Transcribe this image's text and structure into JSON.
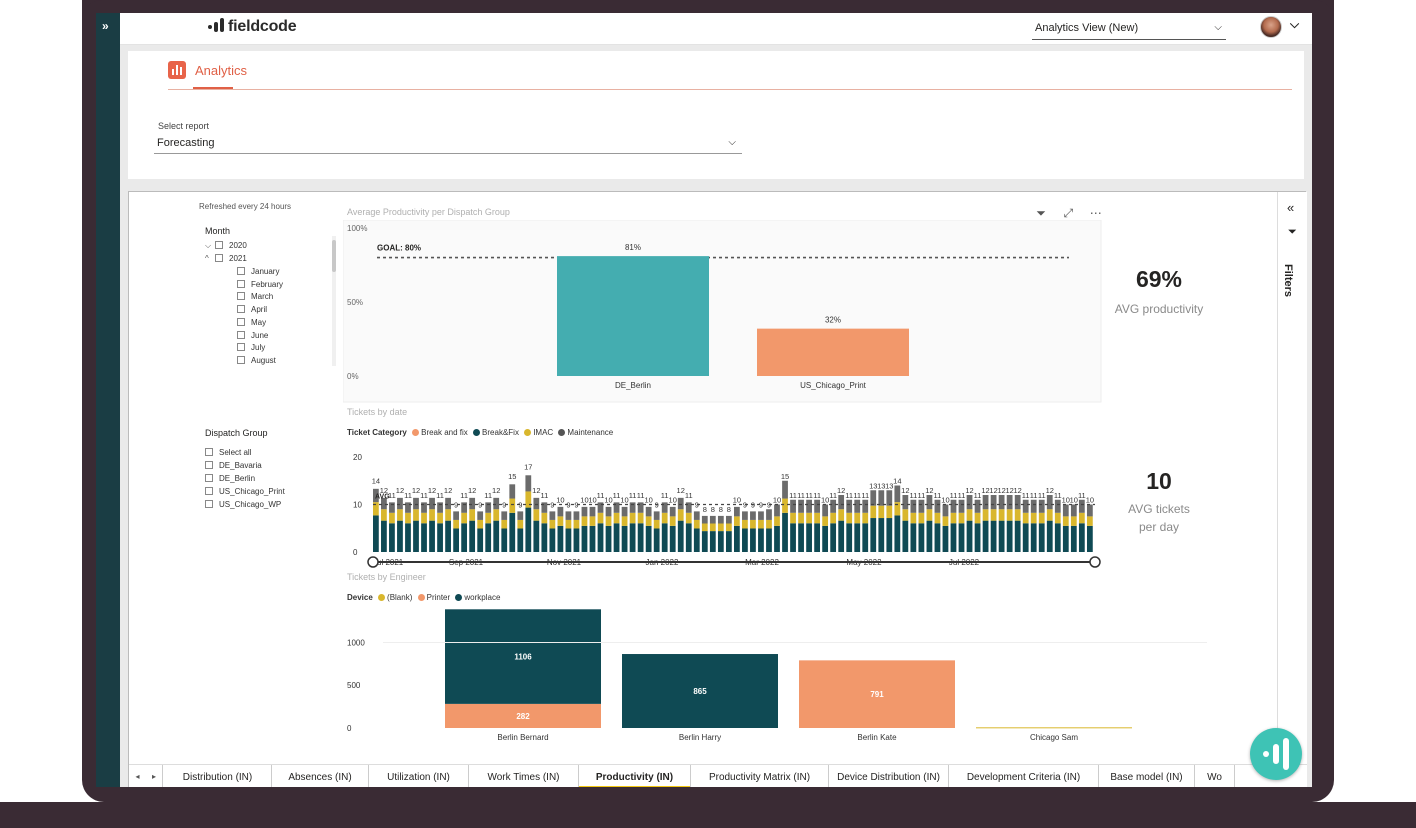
{
  "app": {
    "logo_text": "fieldcode",
    "view_selector": "Analytics View (New)",
    "collapse_icon": "double-chevron-right-icon"
  },
  "analytics_tab": {
    "label": "Analytics",
    "icon": "bar-chart-icon"
  },
  "report_selector": {
    "label": "Select report",
    "value": "Forecasting"
  },
  "report": {
    "refreshed_text": "Refreshed every 24 hours",
    "month_slicer": {
      "title": "Month",
      "years": [
        "2020",
        "2021"
      ],
      "months": [
        "January",
        "February",
        "March",
        "April",
        "May",
        "June",
        "July",
        "August"
      ]
    },
    "dispatch_slicer": {
      "title": "Dispatch Group",
      "items": [
        "Select all",
        "DE_Bavaria",
        "DE_Berlin",
        "US_Chicago_Print",
        "US_Chicago_WP"
      ]
    },
    "kpis": {
      "productivity": {
        "value": "69%",
        "label": "AVG productivity"
      },
      "tickets": {
        "value": "10",
        "label_line1": "AVG tickets",
        "label_line2": "per day"
      }
    },
    "filters_label": "Filters"
  },
  "visual_tools": [
    "filter-icon",
    "focus-mode-icon",
    "more-options-icon"
  ],
  "chart_data": [
    {
      "type": "bar",
      "title": "Average Productivity per Dispatch Group",
      "categories": [
        "DE_Berlin",
        "US_Chicago_Print"
      ],
      "values": [
        81,
        32
      ],
      "value_labels": [
        "81%",
        "32%"
      ],
      "colors": [
        "#44adb0",
        "#f2986b"
      ],
      "yticks": [
        "100%",
        "50%",
        "0%"
      ],
      "ylim": [
        0,
        100
      ],
      "goal": {
        "label": "GOAL: 80%",
        "value": 80
      }
    },
    {
      "type": "bar",
      "title": "Tickets by date",
      "legend_title": "Ticket Category",
      "series": [
        {
          "name": "Break and fix",
          "color": "#f2986b"
        },
        {
          "name": "Break&Fix",
          "color": "#0f4a54"
        },
        {
          "name": "IMAC",
          "color": "#d9b72d"
        },
        {
          "name": "Maintenance",
          "color": "#555555"
        }
      ],
      "stacked": true,
      "yticks": [
        "20",
        "10",
        "0"
      ],
      "ylim": [
        0,
        20
      ],
      "xticks": [
        "Jul 2021",
        "Sep 2021",
        "Nov 2021",
        "Jan 2022",
        "Mar 2022",
        "May 2022",
        "Jul 2022"
      ],
      "avg": {
        "label": "AVG",
        "value": 10
      },
      "top_labels": [
        14,
        12,
        11,
        12,
        11,
        12,
        11,
        12,
        11,
        12,
        9,
        11,
        12,
        9,
        11,
        12,
        9,
        15,
        9,
        17,
        12,
        11,
        9,
        10,
        9,
        9,
        10,
        10,
        11,
        10,
        11,
        10,
        11,
        11,
        10,
        9,
        11,
        10,
        12,
        11,
        9,
        8,
        8,
        8,
        8,
        10,
        9,
        9,
        9,
        9,
        10,
        15,
        11,
        11,
        11,
        11,
        10,
        11,
        12,
        11,
        11,
        11,
        13,
        13,
        13,
        14,
        12,
        11,
        11,
        12,
        11,
        10,
        11,
        11,
        12,
        11,
        12,
        12,
        12,
        12,
        12,
        11,
        11,
        11,
        12,
        11,
        10,
        10,
        11,
        10
      ]
    },
    {
      "type": "bar",
      "title": "Tickets by Engineer",
      "legend_title": "Device",
      "stacked": true,
      "categories": [
        "Berlin Bernard",
        "Berlin Harry",
        "Berlin Kate",
        "Chicago Sam"
      ],
      "series": [
        {
          "name": "(Blank)",
          "color": "#d9b72d",
          "values": [
            0,
            0,
            0,
            8
          ]
        },
        {
          "name": "Printer",
          "color": "#f2986b",
          "values": [
            282,
            0,
            791,
            0
          ]
        },
        {
          "name": "workplace",
          "color": "#0f4a54",
          "values": [
            1106,
            865,
            0,
            0
          ]
        }
      ],
      "yticks": [
        "1000",
        "500",
        "0"
      ],
      "ylim": [
        0,
        1450
      ]
    }
  ],
  "page_tabs": [
    {
      "label": "Distribution (IN)",
      "active": false
    },
    {
      "label": "Absences (IN)",
      "active": false
    },
    {
      "label": "Utilization (IN)",
      "active": false
    },
    {
      "label": "Work Times (IN)",
      "active": false
    },
    {
      "label": "Productivity (IN)",
      "active": true
    },
    {
      "label": "Productivity Matrix (IN)",
      "active": false
    },
    {
      "label": "Device Distribution (IN)",
      "active": false
    },
    {
      "label": "Development Criteria (IN)",
      "active": false
    },
    {
      "label": "Base model (IN)",
      "active": false
    },
    {
      "label": "Wo",
      "active": false
    }
  ]
}
